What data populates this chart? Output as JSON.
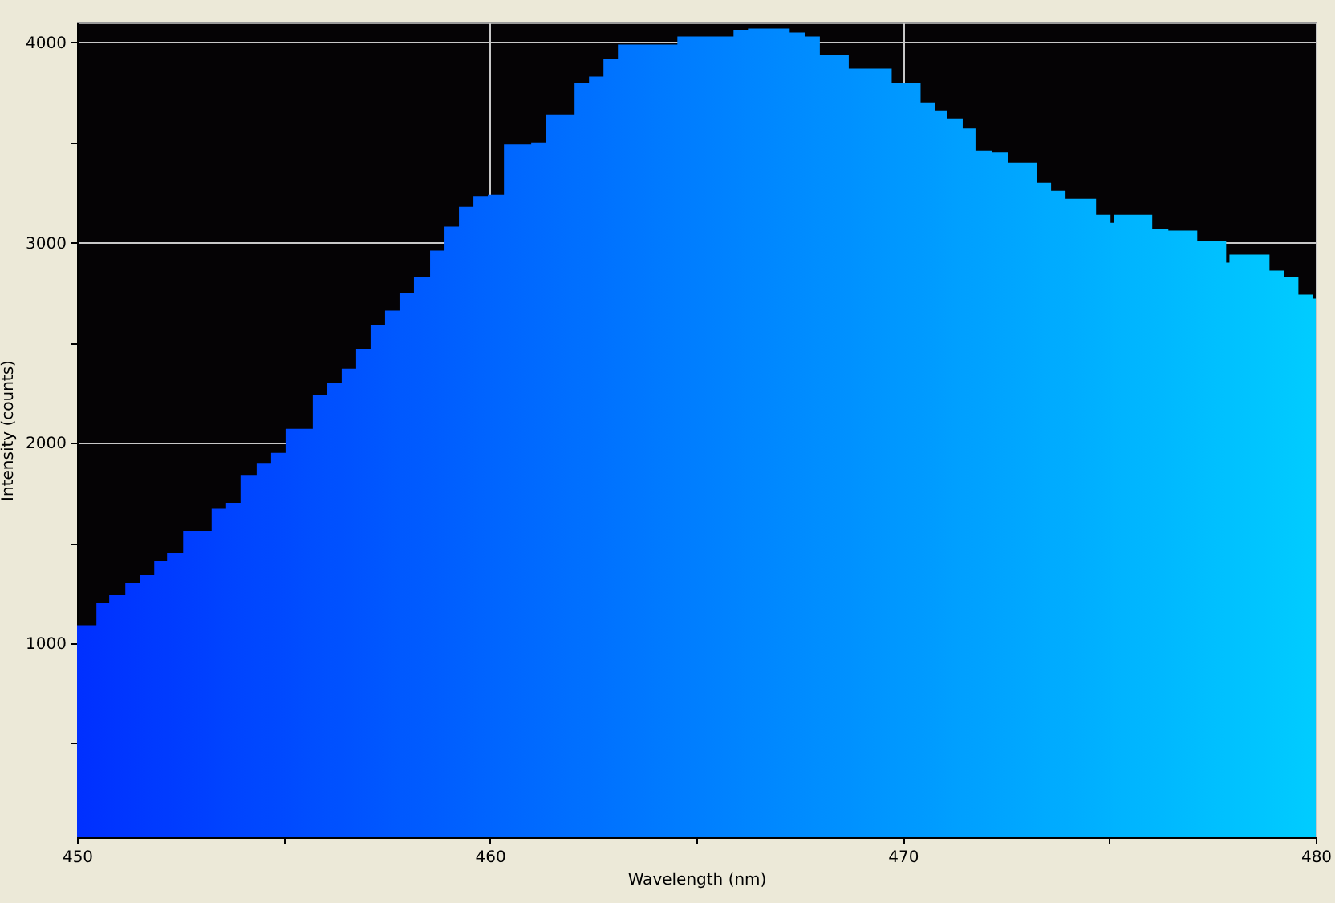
{
  "chart_data": {
    "type": "area",
    "xlabel": "Wavelength (nm)",
    "ylabel": "Intensity (counts)",
    "x": [
      450.0,
      450.47,
      450.78,
      451.17,
      451.52,
      451.87,
      452.18,
      452.57,
      453.26,
      453.61,
      453.96,
      454.35,
      454.7,
      455.05,
      455.71,
      456.06,
      456.41,
      456.76,
      457.11,
      457.46,
      457.81,
      458.16,
      458.55,
      458.9,
      459.25,
      459.6,
      459.95,
      460.34,
      461.0,
      461.35,
      462.05,
      462.4,
      462.75,
      463.1,
      464.54,
      465.9,
      466.25,
      467.26,
      467.64,
      467.99,
      468.69,
      469.73,
      470.43,
      470.78,
      471.07,
      471.45,
      471.76,
      472.15,
      472.54,
      473.24,
      473.59,
      473.94,
      474.68,
      475.03,
      475.11,
      476.04,
      476.43,
      477.13,
      477.83,
      477.91,
      478.88,
      479.23,
      479.58,
      479.93,
      480.0
    ],
    "series": [
      {
        "colors": [
          "#0030ff",
          "#0032ff",
          "#0034ff",
          "#0036ff",
          "#0038ff",
          "#003aff",
          "#003bff",
          "#003dff",
          "#0041ff",
          "#0043ff",
          "#0045ff",
          "#0047ff",
          "#0048ff",
          "#004aff",
          "#004eff",
          "#0050ff",
          "#0051ff",
          "#0053ff",
          "#0055ff",
          "#0057ff",
          "#0059ff",
          "#005aff",
          "#005cff",
          "#005eff",
          "#0060ff",
          "#0062ff",
          "#0064ff",
          "#0066ff",
          "#0069ff",
          "#006bff",
          "#006fff",
          "#0070ff",
          "#0072ff",
          "#0074ff",
          "#007cff",
          "#0083ff",
          "#0085ff",
          "#008aff",
          "#008cff",
          "#008eff",
          "#0091ff",
          "#0097ff",
          "#009aff",
          "#009cff",
          "#009eff",
          "#00a0ff",
          "#00a1ff",
          "#00a3ff",
          "#00a5ff",
          "#00a9ff",
          "#00abff",
          "#00acff",
          "#00b0ff",
          "#00b2ff",
          "#00b3ff",
          "#00b7ff",
          "#00b9ff",
          "#00bdff",
          "#00c1ff",
          "#00c1ff",
          "#00c6ff",
          "#00c8ff",
          "#00caff",
          "#00ccff",
          "#00ccff"
        ],
        "values": [
          1090,
          1200,
          1240,
          1300,
          1340,
          1410,
          1450,
          1560,
          1670,
          1700,
          1840,
          1900,
          1950,
          2070,
          2240,
          2300,
          2370,
          2470,
          2590,
          2660,
          2750,
          2830,
          2960,
          3080,
          3180,
          3230,
          3240,
          3490,
          3500,
          3640,
          3800,
          3830,
          3920,
          3990,
          4030,
          4060,
          4070,
          4050,
          4030,
          3940,
          3870,
          3800,
          3700,
          3660,
          3620,
          3570,
          3460,
          3450,
          3400,
          3300,
          3260,
          3220,
          3140,
          3100,
          3140,
          3070,
          3060,
          3010,
          2900,
          2940,
          2860,
          2830,
          2740,
          2720,
          2720
        ]
      }
    ],
    "xlim": [
      450,
      480
    ],
    "ylim": [
      30,
      4100
    ],
    "xticks": [
      450,
      {
        "value": 455,
        "label": null
      },
      460,
      {
        "value": 465,
        "label": null
      },
      470,
      {
        "value": 475,
        "label": null
      },
      480
    ],
    "yticks": [
      {
        "value": 500,
        "label": null
      },
      1000,
      {
        "value": 1500,
        "label": null
      },
      2000,
      {
        "value": 2500,
        "label": null
      },
      3000,
      {
        "value": 3500,
        "label": null
      },
      4000
    ],
    "grid": true
  }
}
